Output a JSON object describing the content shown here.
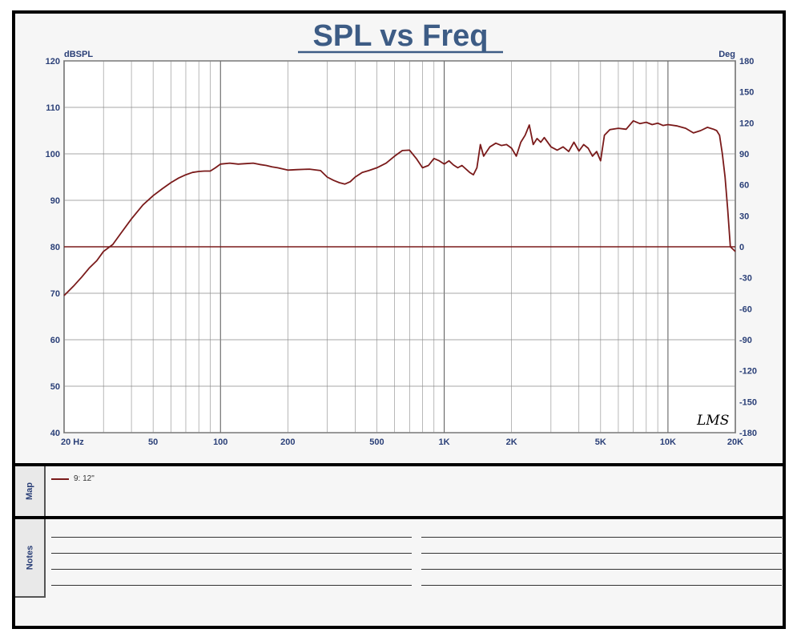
{
  "chart_data": {
    "type": "line",
    "title": "SPL vs Freq",
    "ylabel": "dBSPL",
    "y2label": "Deg",
    "xscale": "log",
    "xlim": [
      20,
      20000
    ],
    "ylim": [
      40,
      120
    ],
    "y2lim": [
      -180,
      180
    ],
    "grid": true,
    "x_ticks": [
      {
        "v": 20,
        "t": "20  Hz"
      },
      {
        "v": 50,
        "t": "50"
      },
      {
        "v": 100,
        "t": "100"
      },
      {
        "v": 200,
        "t": "200"
      },
      {
        "v": 500,
        "t": "500"
      },
      {
        "v": 1000,
        "t": "1K"
      },
      {
        "v": 2000,
        "t": "2K"
      },
      {
        "v": 5000,
        "t": "5K"
      },
      {
        "v": 10000,
        "t": "10K"
      },
      {
        "v": 20000,
        "t": "20K"
      }
    ],
    "y_ticks": [
      120,
      110,
      100,
      90,
      80,
      70,
      60,
      50,
      40
    ],
    "y2_ticks": [
      180,
      150,
      120,
      90,
      60,
      30,
      0,
      -30,
      -60,
      -90,
      -120,
      -150,
      -180
    ],
    "series": [
      {
        "name": "9: 12\"",
        "color": "#7a1a1a",
        "x": [
          20,
          22,
          24,
          26,
          28,
          30,
          33,
          36,
          40,
          45,
          50,
          55,
          60,
          65,
          70,
          75,
          80,
          85,
          90,
          95,
          100,
          110,
          120,
          130,
          140,
          150,
          160,
          170,
          180,
          200,
          220,
          250,
          280,
          300,
          320,
          340,
          360,
          380,
          400,
          430,
          460,
          500,
          550,
          600,
          650,
          700,
          750,
          800,
          850,
          900,
          950,
          1000,
          1050,
          1100,
          1150,
          1200,
          1300,
          1350,
          1400,
          1450,
          1500,
          1600,
          1700,
          1800,
          1900,
          2000,
          2100,
          2200,
          2300,
          2400,
          2500,
          2600,
          2700,
          2800,
          3000,
          3200,
          3400,
          3600,
          3800,
          4000,
          4200,
          4400,
          4600,
          4800,
          5000,
          5200,
          5500,
          6000,
          6500,
          7000,
          7500,
          8000,
          8500,
          9000,
          9500,
          10000,
          11000,
          12000,
          13000,
          14000,
          15000,
          16000,
          16500,
          17000,
          17500,
          18000,
          18500,
          19000,
          19500,
          20000
        ],
        "y": [
          69.5,
          71.5,
          73.5,
          75.5,
          77,
          79,
          80.5,
          83,
          86,
          89,
          91,
          92.5,
          93.8,
          94.8,
          95.5,
          96,
          96.2,
          96.3,
          96.3,
          97,
          97.8,
          98,
          97.8,
          97.9,
          98,
          97.7,
          97.5,
          97.2,
          97,
          96.5,
          96.6,
          96.7,
          96.4,
          95,
          94.3,
          93.8,
          93.5,
          94,
          95,
          96,
          96.4,
          97,
          98,
          99.5,
          100.7,
          100.8,
          99,
          97,
          97.5,
          99,
          98.5,
          97.8,
          98.5,
          97.6,
          97,
          97.5,
          96,
          95.5,
          97,
          102,
          99.5,
          101.5,
          102.3,
          101.8,
          102,
          101.2,
          99.5,
          102.5,
          104,
          106.2,
          102,
          103.3,
          102.5,
          103.5,
          101.5,
          100.8,
          101.5,
          100.5,
          102.5,
          100.6,
          102,
          101.2,
          99.5,
          100.5,
          98.5,
          104,
          105.2,
          105.5,
          105.3,
          107.1,
          106.5,
          106.8,
          106.3,
          106.6,
          106.1,
          106.3,
          106,
          105.5,
          104.5,
          105,
          105.7,
          105.3,
          105,
          104,
          100,
          95,
          88,
          80,
          79.5,
          79
        ]
      },
      {
        "name": "",
        "color": "#7a1a1a",
        "x": [
          20,
          20000
        ],
        "y": [
          80,
          80
        ]
      }
    ]
  },
  "corner_mark": "LMS",
  "panels": {
    "map_label": "Map",
    "notes_label": "Notes"
  },
  "legend": {
    "label": "9: 12\""
  }
}
